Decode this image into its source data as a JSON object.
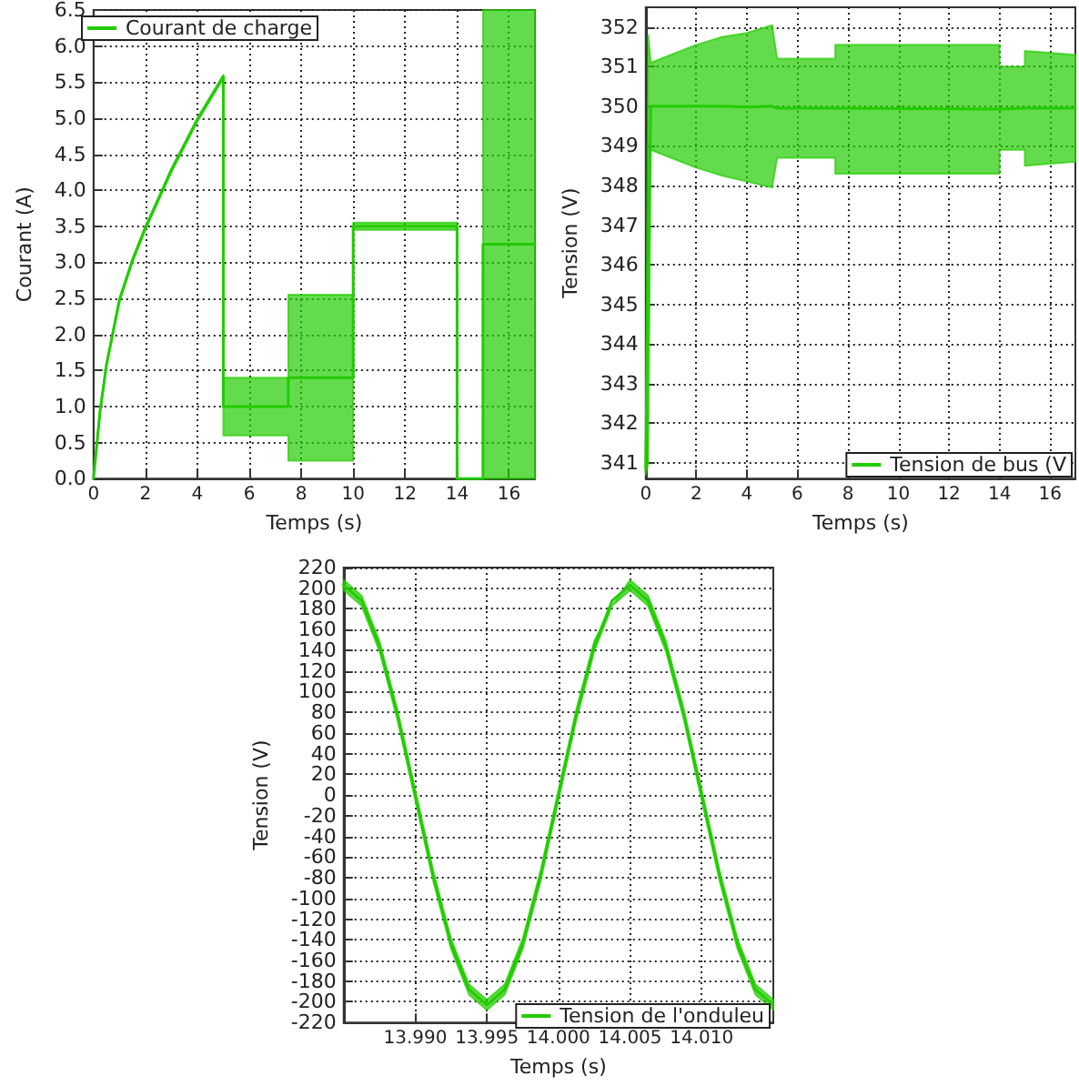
{
  "chart_data": [
    {
      "type": "line",
      "xlabel": "Temps (s)",
      "ylabel": "Courant (A)",
      "xlim": [
        0,
        17
      ],
      "ylim": [
        0,
        6.5
      ],
      "xticks": [
        0,
        2,
        4,
        6,
        8,
        10,
        12,
        14,
        16
      ],
      "yticks": [
        {
          "value": 0,
          "label": "0.0"
        },
        0.5,
        {
          "value": 1,
          "label": "1.0"
        },
        1.5,
        {
          "value": 2,
          "label": "2.0"
        },
        2.5,
        {
          "value": 3,
          "label": "3.0"
        },
        3.5,
        {
          "value": 4,
          "label": "4.0"
        },
        4.5,
        {
          "value": 5,
          "label": "5.0"
        },
        5.5,
        {
          "value": 6,
          "label": "6.0"
        },
        6.5
      ],
      "grid": true,
      "legend": "top left",
      "marker": "none",
      "series": [
        {
          "name": "Courant de charge",
          "color": "#22cc00",
          "x": [
            0,
            0.25,
            0.5,
            1,
            1.5,
            2,
            2.5,
            3,
            3.5,
            4,
            4.5,
            5,
            5,
            7.5,
            7.5,
            10,
            10,
            14,
            14,
            15,
            15,
            17
          ],
          "values": [
            0,
            0.93,
            1.58,
            2.48,
            3.03,
            3.48,
            3.88,
            4.28,
            4.63,
            4.98,
            5.28,
            5.58,
            1,
            1,
            1.4,
            1.4,
            3.5,
            3.5,
            0,
            0,
            3.25,
            3.25
          ],
          "lower": [
            0,
            0.9,
            1.55,
            2.45,
            3.0,
            3.45,
            3.85,
            4.25,
            4.6,
            4.95,
            5.25,
            5.55,
            0.6,
            0.6,
            0.25,
            0.25,
            3.45,
            3.45,
            0,
            0,
            0,
            0
          ],
          "upper": [
            0,
            0.95,
            1.6,
            2.5,
            3.05,
            3.5,
            3.9,
            4.3,
            4.65,
            5.0,
            5.3,
            5.6,
            1.4,
            1.4,
            2.55,
            2.55,
            3.55,
            3.55,
            0,
            0,
            6.5,
            6.5
          ]
        }
      ]
    },
    {
      "type": "line",
      "xlabel": "Temps (s)",
      "ylabel": "Tension (V)",
      "xlim": [
        0,
        17
      ],
      "ylim": [
        340.6,
        352.5
      ],
      "xticks": [
        0,
        2,
        4,
        6,
        8,
        10,
        12,
        14,
        16
      ],
      "yticks": [
        341,
        342,
        343,
        344,
        345,
        346,
        347,
        348,
        349,
        350,
        351,
        352
      ],
      "grid": true,
      "legend": "bottom right",
      "marker": "none",
      "series": [
        {
          "name": "Tension de bus (V",
          "color": "#22cc00",
          "x": [
            0,
            0.1,
            0.2,
            1,
            2,
            3,
            4,
            5,
            5.2,
            7.5,
            7.5,
            14,
            14,
            15,
            15,
            17
          ],
          "values": [
            340.85,
            346.4,
            350,
            350,
            350,
            350,
            349.98,
            350,
            349.95,
            349.95,
            349.93,
            349.93,
            349.95,
            349.95,
            349.95,
            349.95
          ],
          "lower": [
            340.7,
            341,
            348.9,
            348.7,
            348.45,
            348.25,
            348.1,
            347.95,
            348.7,
            348.7,
            348.3,
            348.3,
            348.9,
            348.9,
            348.5,
            348.6
          ],
          "upper": [
            341,
            351.8,
            351.1,
            351.3,
            351.55,
            351.75,
            351.85,
            352.05,
            351.2,
            351.2,
            351.55,
            351.55,
            351.0,
            351.0,
            351.4,
            351.3
          ]
        }
      ]
    },
    {
      "type": "line",
      "xlabel": "Temps (s)",
      "ylabel": "Tension (V)",
      "xlim": [
        13.985,
        14.015
      ],
      "xticks": [
        {
          "value": 13.99,
          "label": "13.990"
        },
        13.995,
        {
          "value": 14.0,
          "label": "14.000"
        },
        14.005,
        {
          "value": 14.01,
          "label": "14.010"
        }
      ],
      "ylim": [
        -220,
        220
      ],
      "yticks": [
        -220,
        -200,
        -180,
        -160,
        -140,
        -120,
        -100,
        -80,
        -60,
        -40,
        -20,
        0,
        20,
        40,
        60,
        80,
        100,
        120,
        140,
        160,
        180,
        200,
        220
      ],
      "grid": true,
      "legend": "bottom right",
      "marker": "none",
      "series": [
        {
          "name": "Tension de l'onduleu",
          "color": "#22cc00",
          "x": [
            13.985,
            13.98625,
            13.9875,
            13.98875,
            13.99,
            13.99125,
            13.9925,
            13.99375,
            13.995,
            13.99625,
            13.9975,
            13.99875,
            14.0,
            14.00125,
            14.0025,
            14.00375,
            14.005,
            14.00625,
            14.0075,
            14.00875,
            14.01,
            14.01125,
            14.0125,
            14.01375,
            14.015
          ],
          "values": [
            203,
            188,
            144,
            78,
            0,
            -78,
            -144,
            -188,
            -203,
            -188,
            -144,
            -78,
            0,
            78,
            144,
            188,
            203,
            188,
            144,
            78,
            0,
            -78,
            -144,
            -188,
            -203
          ],
          "lower": [
            198,
            183,
            139,
            73,
            -5,
            -83,
            -149,
            -193,
            -208,
            -193,
            -149,
            -83,
            -5,
            73,
            139,
            183,
            198,
            183,
            139,
            73,
            -5,
            -83,
            -149,
            -193,
            -208
          ],
          "upper": [
            208,
            193,
            149,
            83,
            5,
            -73,
            -139,
            -183,
            -198,
            -183,
            -139,
            -73,
            5,
            83,
            149,
            183,
            208,
            193,
            149,
            83,
            5,
            -73,
            -139,
            -183,
            -198
          ]
        }
      ]
    }
  ]
}
